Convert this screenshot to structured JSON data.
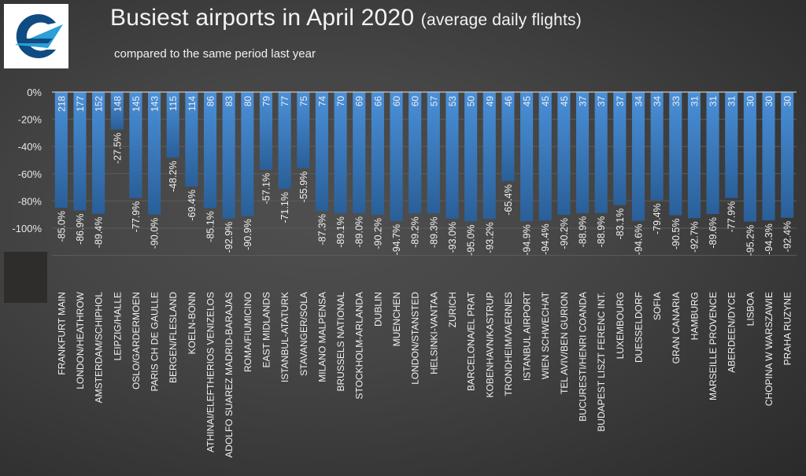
{
  "header": {
    "title_main": "Busiest airports in April 2020 ",
    "title_paren": "(average daily flights)",
    "subtitle": "compared to the same period last year",
    "logo": "eurocontrol-logo-icon"
  },
  "colors": {
    "bar_top": "#4a90d9",
    "bar_bottom": "#2a5f98",
    "gridline": "#5c5c5c",
    "axis": "#c8c8c8",
    "text": "#f0f0f0"
  },
  "chart_data": {
    "type": "bar",
    "title": "Busiest airports in April 2020 (average daily flights)",
    "subtitle": "compared to the same period last year",
    "xlabel": "",
    "ylabel": "",
    "ylim": [
      -120,
      0
    ],
    "yticks": [
      "0%",
      "-20%",
      "-40%",
      "-60%",
      "-80%",
      "-100%"
    ],
    "grid": true,
    "categories": [
      "FRANKFURT MAIN",
      "LONDON/HEATHROW",
      "AMSTERDAM/SCHIPHOL",
      "LEIPZIG/HALLE",
      "OSLO/GARDERMOEN",
      "PARIS CH DE GAULLE",
      "BERGEN/FLESLAND",
      "KOELN-BONN",
      "ATHINAI/ELEFTHERIOS VENIZELOS",
      "ADOLFO SUAREZ MADRID-BARAJAS",
      "ROMA/FIUMICINO",
      "EAST MIDLANDS",
      "ISTANBUL-ATATURK",
      "STAVANGER/SOLA",
      "MILANO MALPENSA",
      "BRUSSELS NATIONAL",
      "STOCKHOLM-ARLANDA",
      "DUBLIN",
      "MUENCHEN",
      "LONDON/STANSTED",
      "HELSINKI-VANTAA",
      "ZURICH",
      "BARCELONA/EL PRAT",
      "KOBENHAVN/KASTRUP",
      "TRONDHEIM/VAERNES",
      "ISTANBUL AIRPORT",
      "WIEN SCHWECHAT",
      "TEL AVIV/BEN GURION",
      "BUCURESTI/HENRI COANDA",
      "BUDAPEST LISZT FERENC INT.",
      "LUXEMBOURG",
      "DUESSELDORF",
      "SOFIA",
      "GRAN CANARIA",
      "HAMBURG",
      "MARSEILLE PROVENCE",
      "ABERDEEN/DYCE",
      "LISBOA",
      "CHOPINA W WARSZAWIE",
      "PRAHA RUZYNE"
    ],
    "series": [
      {
        "name": "Change vs same period last year (%)",
        "values": [
          -85.0,
          -86.9,
          -89.4,
          -27.5,
          -77.9,
          -90.0,
          -48.2,
          -69.4,
          -85.1,
          -92.9,
          -90.9,
          -57.1,
          -71.1,
          -55.9,
          -87.3,
          -89.1,
          -89.0,
          -90.2,
          -94.7,
          -89.2,
          -89.3,
          -93.0,
          -95.0,
          -93.2,
          -65.4,
          -94.9,
          -94.4,
          -90.2,
          -88.9,
          -88.9,
          -83.1,
          -94.6,
          -79.4,
          -90.5,
          -92.7,
          -89.6,
          -77.9,
          -95.2,
          -94.3,
          -92.4
        ],
        "labels": [
          "-85.0%",
          "-86.9%",
          "-89.4%",
          "-27.5%",
          "-77.9%",
          "-90.0%",
          "-48.2%",
          "-69.4%",
          "-85.1%",
          "-92.9%",
          "-90.9%",
          "-57.1%",
          "-71.1%",
          "-55.9%",
          "-87.3%",
          "-89.1%",
          "-89.0%",
          "-90.2%",
          "-94.7%",
          "-89.2%",
          "-89.3%",
          "-93.0%",
          "-95.0%",
          "-93.2%",
          "-65.4%",
          "-94.9%",
          "-94.4%",
          "-90.2%",
          "-88.9%",
          "-88.9%",
          "-83.1%",
          "-94.6%",
          "-79.4%",
          "-90.5%",
          "-92.7%",
          "-89.6%",
          "-77.9%",
          "-95.2%",
          "-94.3%",
          "-92.4%"
        ]
      },
      {
        "name": "Average daily flights",
        "values": [
          218,
          177,
          152,
          148,
          145,
          143,
          115,
          114,
          86,
          83,
          80,
          79,
          77,
          75,
          74,
          70,
          69,
          66,
          60,
          60,
          57,
          53,
          50,
          49,
          46,
          45,
          45,
          45,
          37,
          37,
          37,
          34,
          34,
          33,
          31,
          31,
          31,
          30,
          30,
          30
        ]
      }
    ]
  }
}
